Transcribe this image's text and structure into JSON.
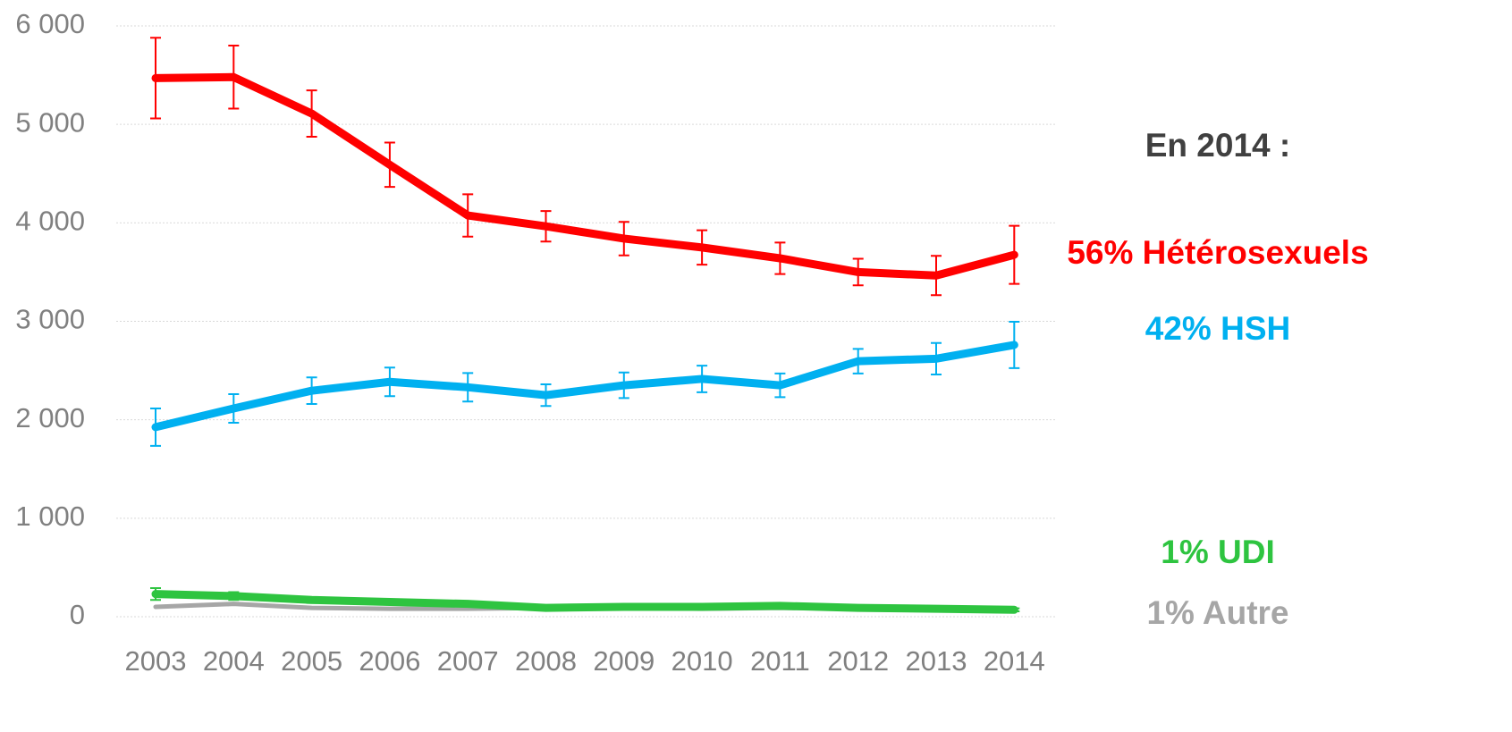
{
  "chart_data": {
    "type": "line",
    "annotation": "En 2014 :",
    "categories": [
      "2003",
      "2004",
      "2005",
      "2006",
      "2007",
      "2008",
      "2009",
      "2010",
      "2011",
      "2012",
      "2013",
      "2014"
    ],
    "series": [
      {
        "name": "56% Hétérosexuels",
        "color": "#ff0000",
        "values": [
          5470,
          5480,
          5110,
          4590,
          4075,
          3965,
          3840,
          3750,
          3640,
          3500,
          3465,
          3675
        ],
        "errors": [
          410,
          320,
          235,
          225,
          215,
          155,
          170,
          175,
          160,
          135,
          200,
          295
        ]
      },
      {
        "name": "42% HSH",
        "color": "#00b0f0",
        "values": [
          1925,
          2115,
          2295,
          2385,
          2330,
          2250,
          2350,
          2415,
          2350,
          2595,
          2620,
          2760
        ],
        "errors": [
          190,
          145,
          135,
          145,
          145,
          110,
          130,
          135,
          120,
          125,
          160,
          235
        ]
      },
      {
        "name": "1% UDI",
        "color": "#2ec440",
        "values": [
          230,
          210,
          170,
          150,
          130,
          90,
          100,
          100,
          110,
          90,
          80,
          70
        ],
        "errors": [
          60,
          40,
          30,
          25,
          20,
          15,
          15,
          15,
          15,
          15,
          15,
          15
        ]
      },
      {
        "name": "1% Autre",
        "color": "#a6a6a6",
        "values": [
          100,
          130,
          90,
          80,
          80,
          90,
          90,
          80,
          90,
          80,
          80,
          80
        ]
      }
    ],
    "ylim": [
      0,
      6000
    ],
    "yticks": [
      0,
      {
        "value": 1000,
        "label": "1 000"
      },
      {
        "value": 2000,
        "label": "2 000"
      },
      {
        "value": 3000,
        "label": "3 000"
      },
      {
        "value": 4000,
        "label": "4 000"
      },
      {
        "value": 5000,
        "label": "5 000"
      },
      {
        "value": 6000,
        "label": "6 000"
      }
    ],
    "grid": true
  }
}
